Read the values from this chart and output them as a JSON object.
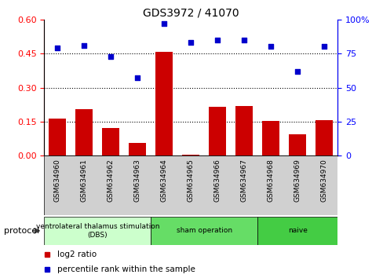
{
  "title": "GDS3972 / 41070",
  "samples": [
    "GSM634960",
    "GSM634961",
    "GSM634962",
    "GSM634963",
    "GSM634964",
    "GSM634965",
    "GSM634966",
    "GSM634967",
    "GSM634968",
    "GSM634969",
    "GSM634970"
  ],
  "log2_ratio": [
    0.163,
    0.205,
    0.122,
    0.055,
    0.457,
    0.005,
    0.215,
    0.218,
    0.152,
    0.095,
    0.155
  ],
  "percentile_rank": [
    79,
    81,
    73,
    57,
    97,
    83,
    85,
    85,
    80,
    62,
    80
  ],
  "left_ylim": [
    0,
    0.6
  ],
  "right_ylim": [
    0,
    100
  ],
  "left_yticks": [
    0,
    0.15,
    0.3,
    0.45,
    0.6
  ],
  "right_yticks": [
    0,
    25,
    50,
    75,
    100
  ],
  "bar_color": "#cc0000",
  "scatter_color": "#0000cc",
  "protocol_groups": [
    {
      "label": "ventrolateral thalamus stimulation\n(DBS)",
      "start": 0,
      "end": 4,
      "color": "#ccffcc"
    },
    {
      "label": "sham operation",
      "start": 4,
      "end": 8,
      "color": "#66dd66"
    },
    {
      "label": "naive",
      "start": 8,
      "end": 11,
      "color": "#44cc44"
    }
  ],
  "protocol_label": "protocol",
  "legend_items": [
    {
      "label": "log2 ratio",
      "color": "#cc0000",
      "marker": "s"
    },
    {
      "label": "percentile rank within the sample",
      "color": "#0000cc",
      "marker": "s"
    }
  ],
  "hgrid_vals": [
    0.15,
    0.3,
    0.45
  ]
}
